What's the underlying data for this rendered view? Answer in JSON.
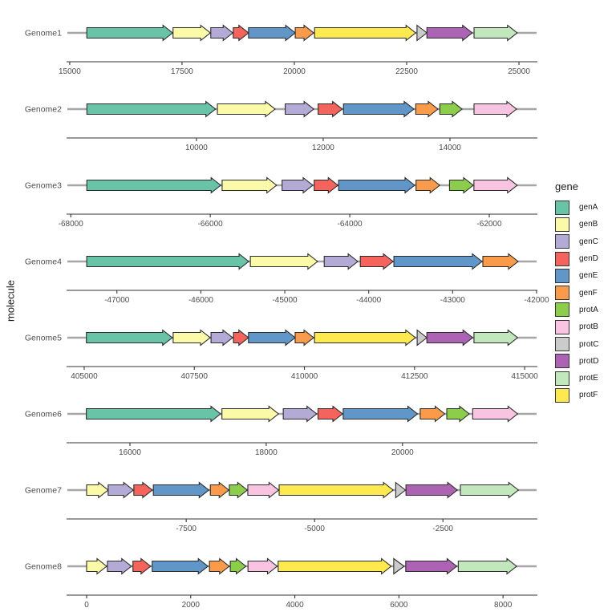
{
  "figure": {
    "ylabel": "molecule",
    "legend_title": "gene"
  },
  "colors": {
    "background": "#FFFFFF",
    "axis_line": "#333333",
    "axis_text": "#4D4D4D",
    "facet_label_text": "#4D4D4D",
    "molecule_line": "#A6A6A6",
    "gene_outline": "#2B2B2B",
    "legend_text": "#1A1A1A"
  },
  "palette": {
    "genA": "#69C3A6",
    "genB": "#FBFAA9",
    "genC": "#B3AAD5",
    "genD": "#F4635C",
    "genE": "#6096C8",
    "genF": "#FA9A4B",
    "protA": "#8CCE4C",
    "protB": "#F8C4E1",
    "protC": "#CBCBCB",
    "protD": "#AC63B4",
    "protE": "#C3E7BD",
    "protF": "#FEE94F"
  },
  "chart_data": {
    "type": "gene-arrow-map",
    "title": "",
    "xlabel": "",
    "ylabel": "molecule",
    "legend_title": "gene",
    "legend_position": "right",
    "legend_entries": [
      "genA",
      "genB",
      "genC",
      "genD",
      "genE",
      "genF",
      "protA",
      "protB",
      "protC",
      "protD",
      "protE",
      "protF"
    ],
    "facets": [
      {
        "molecule": "Genome1",
        "axis": {
          "domain": [
            14930,
            25410
          ],
          "ticks": [
            15000,
            17500,
            20000,
            22500,
            25000
          ]
        },
        "genes": [
          {
            "gene": "genA",
            "start": 15380,
            "end": 17290,
            "strand": "forward"
          },
          {
            "gene": "genB",
            "start": 17300,
            "end": 18130,
            "strand": "forward"
          },
          {
            "gene": "genC",
            "start": 18140,
            "end": 18630,
            "strand": "forward"
          },
          {
            "gene": "genD",
            "start": 18640,
            "end": 18980,
            "strand": "forward"
          },
          {
            "gene": "genE",
            "start": 18980,
            "end": 20020,
            "strand": "forward"
          },
          {
            "gene": "genF",
            "start": 20020,
            "end": 20430,
            "strand": "forward"
          },
          {
            "gene": "protF",
            "start": 20450,
            "end": 22700,
            "strand": "forward"
          },
          {
            "gene": "protC",
            "start": 22730,
            "end": 22950,
            "strand": "forward"
          },
          {
            "gene": "protD",
            "start": 22950,
            "end": 23960,
            "strand": "forward"
          },
          {
            "gene": "protE",
            "start": 24000,
            "end": 24960,
            "strand": "forward"
          }
        ]
      },
      {
        "molecule": "Genome2",
        "axis": {
          "domain": [
            7950,
            15380
          ],
          "ticks": [
            10000,
            12000,
            14000
          ]
        },
        "genes": [
          {
            "gene": "genA",
            "start": 8270,
            "end": 10300,
            "strand": "forward"
          },
          {
            "gene": "genB",
            "start": 10330,
            "end": 11240,
            "strand": "forward"
          },
          {
            "gene": "genC",
            "start": 11400,
            "end": 11850,
            "strand": "forward"
          },
          {
            "gene": "genD",
            "start": 11920,
            "end": 12300,
            "strand": "forward"
          },
          {
            "gene": "genE",
            "start": 12320,
            "end": 13430,
            "strand": "forward"
          },
          {
            "gene": "genF",
            "start": 13460,
            "end": 13810,
            "strand": "forward"
          },
          {
            "gene": "protA",
            "start": 13840,
            "end": 14190,
            "strand": "forward"
          },
          {
            "gene": "protB",
            "start": 14380,
            "end": 15050,
            "strand": "forward"
          }
        ]
      },
      {
        "molecule": "Genome3",
        "axis": {
          "domain": [
            -68060,
            -61310
          ],
          "ticks": [
            -68000,
            -66000,
            -64000,
            -62000
          ]
        },
        "genes": [
          {
            "gene": "genA",
            "start": -67770,
            "end": -65850,
            "strand": "forward"
          },
          {
            "gene": "genB",
            "start": -65830,
            "end": -65050,
            "strand": "forward"
          },
          {
            "gene": "genC",
            "start": -64970,
            "end": -64530,
            "strand": "forward"
          },
          {
            "gene": "genD",
            "start": -64510,
            "end": -64170,
            "strand": "forward"
          },
          {
            "gene": "genE",
            "start": -64160,
            "end": -63070,
            "strand": "forward"
          },
          {
            "gene": "genF",
            "start": -63050,
            "end": -62710,
            "strand": "forward"
          },
          {
            "gene": "protA",
            "start": -62570,
            "end": -62230,
            "strand": "forward"
          },
          {
            "gene": "protB",
            "start": -62220,
            "end": -61600,
            "strand": "forward"
          }
        ]
      },
      {
        "molecule": "Genome4",
        "axis": {
          "domain": [
            -47600,
            -41990
          ],
          "ticks": [
            -47000,
            -46000,
            -45000,
            -44000,
            -43000,
            -42000
          ]
        },
        "genes": [
          {
            "gene": "genA",
            "start": -47360,
            "end": -45430,
            "strand": "forward"
          },
          {
            "gene": "genB",
            "start": -45410,
            "end": -44610,
            "strand": "forward"
          },
          {
            "gene": "genC",
            "start": -44530,
            "end": -44130,
            "strand": "forward"
          },
          {
            "gene": "genD",
            "start": -44100,
            "end": -43710,
            "strand": "forward"
          },
          {
            "gene": "genE",
            "start": -43700,
            "end": -42650,
            "strand": "forward"
          },
          {
            "gene": "genF",
            "start": -42640,
            "end": -42220,
            "strand": "forward"
          }
        ]
      },
      {
        "molecule": "Genome5",
        "axis": {
          "domain": [
            404600,
            415290
          ],
          "ticks": [
            405000,
            407500,
            410000,
            412500,
            415000
          ]
        },
        "genes": [
          {
            "gene": "genA",
            "start": 405050,
            "end": 407000,
            "strand": "forward"
          },
          {
            "gene": "genB",
            "start": 407020,
            "end": 407860,
            "strand": "forward"
          },
          {
            "gene": "genC",
            "start": 407880,
            "end": 408370,
            "strand": "forward"
          },
          {
            "gene": "genD",
            "start": 408390,
            "end": 408730,
            "strand": "forward"
          },
          {
            "gene": "genE",
            "start": 408730,
            "end": 409790,
            "strand": "forward"
          },
          {
            "gene": "genF",
            "start": 409790,
            "end": 410210,
            "strand": "forward"
          },
          {
            "gene": "protF",
            "start": 410230,
            "end": 412520,
            "strand": "forward"
          },
          {
            "gene": "protC",
            "start": 412560,
            "end": 412780,
            "strand": "forward"
          },
          {
            "gene": "protD",
            "start": 412780,
            "end": 413820,
            "strand": "forward"
          },
          {
            "gene": "protE",
            "start": 413850,
            "end": 414840,
            "strand": "forward"
          }
        ]
      },
      {
        "molecule": "Genome6",
        "axis": {
          "domain": [
            15070,
            21980
          ],
          "ticks": [
            16000,
            18000,
            20000
          ]
        },
        "genes": [
          {
            "gene": "genA",
            "start": 15360,
            "end": 17330,
            "strand": "forward"
          },
          {
            "gene": "genB",
            "start": 17350,
            "end": 18180,
            "strand": "forward"
          },
          {
            "gene": "genC",
            "start": 18250,
            "end": 18740,
            "strand": "forward"
          },
          {
            "gene": "genD",
            "start": 18760,
            "end": 19120,
            "strand": "forward"
          },
          {
            "gene": "genE",
            "start": 19130,
            "end": 20220,
            "strand": "forward"
          },
          {
            "gene": "genF",
            "start": 20260,
            "end": 20620,
            "strand": "forward"
          },
          {
            "gene": "protA",
            "start": 20650,
            "end": 20980,
            "strand": "forward"
          },
          {
            "gene": "protB",
            "start": 21030,
            "end": 21690,
            "strand": "forward"
          }
        ]
      },
      {
        "molecule": "Genome7",
        "axis": {
          "domain": [
            -9830,
            -660
          ],
          "ticks": [
            -7500,
            -5000,
            -2500
          ]
        },
        "genes": [
          {
            "gene": "genB",
            "start": -9440,
            "end": -9020,
            "strand": "forward"
          },
          {
            "gene": "genC",
            "start": -9020,
            "end": -8530,
            "strand": "forward"
          },
          {
            "gene": "genD",
            "start": -8520,
            "end": -8160,
            "strand": "forward"
          },
          {
            "gene": "genE",
            "start": -8140,
            "end": -7060,
            "strand": "forward"
          },
          {
            "gene": "genF",
            "start": -7030,
            "end": -6670,
            "strand": "forward"
          },
          {
            "gene": "protA",
            "start": -6660,
            "end": -6310,
            "strand": "forward"
          },
          {
            "gene": "protB",
            "start": -6300,
            "end": -5700,
            "strand": "forward"
          },
          {
            "gene": "protF",
            "start": -5690,
            "end": -3470,
            "strand": "forward"
          },
          {
            "gene": "protC",
            "start": -3420,
            "end": -3230,
            "strand": "forward"
          },
          {
            "gene": "protD",
            "start": -3220,
            "end": -2220,
            "strand": "forward"
          },
          {
            "gene": "protE",
            "start": -2160,
            "end": -1030,
            "strand": "forward"
          }
        ]
      },
      {
        "molecule": "Genome8",
        "axis": {
          "domain": [
            -385,
            8660
          ],
          "ticks": [
            0,
            2000,
            4000,
            6000,
            8000
          ]
        },
        "genes": [
          {
            "gene": "genB",
            "start": 0,
            "end": 385,
            "strand": "forward"
          },
          {
            "gene": "genC",
            "start": 400,
            "end": 860,
            "strand": "forward"
          },
          {
            "gene": "genD",
            "start": 890,
            "end": 1230,
            "strand": "forward"
          },
          {
            "gene": "genE",
            "start": 1260,
            "end": 2330,
            "strand": "forward"
          },
          {
            "gene": "genF",
            "start": 2360,
            "end": 2740,
            "strand": "forward"
          },
          {
            "gene": "protA",
            "start": 2760,
            "end": 3060,
            "strand": "forward"
          },
          {
            "gene": "protB",
            "start": 3100,
            "end": 3660,
            "strand": "forward"
          },
          {
            "gene": "protF",
            "start": 3680,
            "end": 5850,
            "strand": "forward"
          },
          {
            "gene": "protC",
            "start": 5900,
            "end": 6100,
            "strand": "forward"
          },
          {
            "gene": "protD",
            "start": 6130,
            "end": 7110,
            "strand": "forward"
          },
          {
            "gene": "protE",
            "start": 7140,
            "end": 8260,
            "strand": "forward"
          }
        ]
      }
    ]
  }
}
